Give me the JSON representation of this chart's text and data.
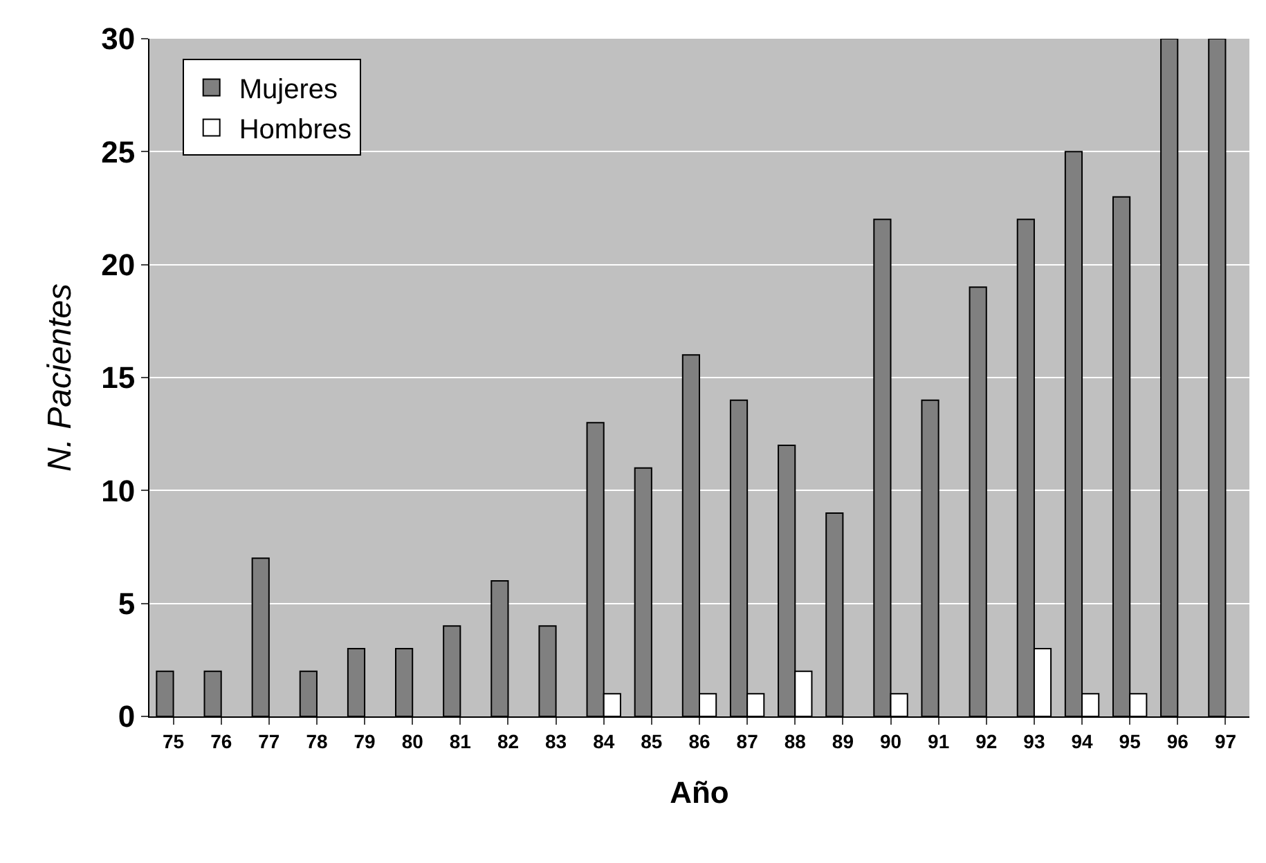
{
  "chart_data": {
    "type": "bar",
    "xlabel": "Año",
    "ylabel": "N. Pacientes",
    "categories": [
      "75",
      "76",
      "77",
      "78",
      "79",
      "80",
      "81",
      "82",
      "83",
      "84",
      "85",
      "86",
      "87",
      "88",
      "89",
      "90",
      "91",
      "92",
      "93",
      "94",
      "95",
      "96",
      "97"
    ],
    "series": [
      {
        "name": "Mujeres",
        "color": "#808080",
        "values": [
          2,
          2,
          7,
          2,
          3,
          3,
          4,
          6,
          4,
          13,
          11,
          16,
          14,
          12,
          9,
          22,
          14,
          19,
          22,
          25,
          23,
          30,
          30
        ]
      },
      {
        "name": "Hombres",
        "color": "#ffffff",
        "values": [
          0,
          0,
          0,
          0,
          0,
          0,
          0,
          0,
          0,
          1,
          0,
          1,
          1,
          2,
          0,
          1,
          0,
          0,
          3,
          1,
          1,
          0,
          0
        ]
      }
    ],
    "ylim": [
      0,
      30
    ],
    "yticks": [
      0,
      5,
      10,
      15,
      20,
      25,
      30
    ],
    "grid": "y",
    "legend": "top left"
  }
}
